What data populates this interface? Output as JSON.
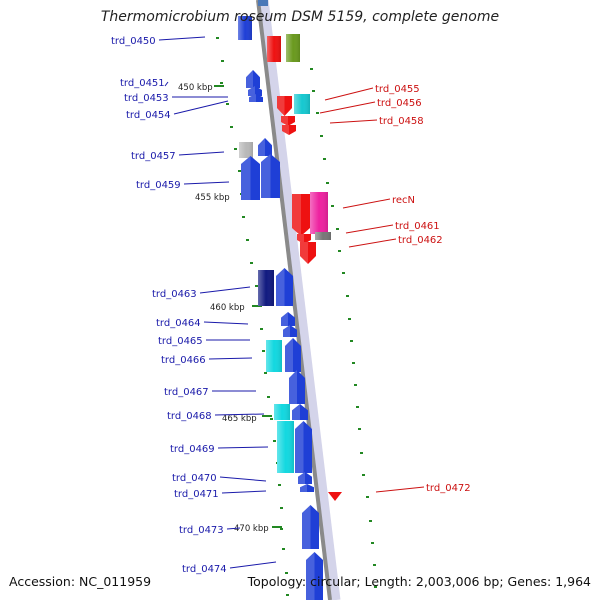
{
  "title": "Thermomicrobium roseum DSM 5159, complete genome",
  "accession_text": "Accession: NC_011959",
  "summary_text": "Topology: circular; Length: 2,003,006 bp; Genes: 1,964",
  "colors": {
    "backbone": "#8a8a8a",
    "left_label": "#1a1aaa",
    "right_label": "#cc1111",
    "tick": "#228822"
  },
  "scale_labels": [
    "450 kbp",
    "455 kbp",
    "460 kbp",
    "465 kbp",
    "470 kbp"
  ],
  "genes_left": [
    {
      "label": "trd_0450",
      "color": "#1f3fd6"
    },
    {
      "label": "trd_0451",
      "color": "#1f3fd6"
    },
    {
      "label": "trd_0453",
      "color": "#1f3fd6"
    },
    {
      "label": "trd_0454",
      "color": "#1f3fd6"
    },
    {
      "label": "trd_0457",
      "color": "#b8b8b8"
    },
    {
      "label": "trd_0459",
      "color": "#1f3fd6"
    },
    {
      "label": "trd_0463",
      "color": "#111a80"
    },
    {
      "label": "trd_0464",
      "color": "#1f3fd6"
    },
    {
      "label": "trd_0465",
      "color": "#1f3fd6"
    },
    {
      "label": "trd_0466",
      "color": "#12d8e0"
    },
    {
      "label": "trd_0467",
      "color": "#1f3fd6"
    },
    {
      "label": "trd_0468",
      "color": "#12d8e0"
    },
    {
      "label": "trd_0469",
      "color": "#1f3fd6"
    },
    {
      "label": "trd_0470",
      "color": "#1f3fd6"
    },
    {
      "label": "trd_0471",
      "color": "#1f3fd6"
    },
    {
      "label": "trd_0473",
      "color": "#1f3fd6"
    },
    {
      "label": "trd_0474",
      "color": "#1f3fd6"
    }
  ],
  "genes_right": [
    {
      "label": "trd_0455",
      "color": "#ee1111"
    },
    {
      "label": "trd_0456",
      "color": "#16c8d0"
    },
    {
      "label": "trd_0458",
      "color": "#ee1111"
    },
    {
      "label": "recN",
      "color": "#ee22a0"
    },
    {
      "label": "trd_0461",
      "color": "#777777"
    },
    {
      "label": "trd_0462",
      "color": "#ee1111"
    },
    {
      "label": "trd_0472",
      "color": "#ee1111"
    }
  ],
  "top_genes": [
    {
      "color": "#ee1111"
    },
    {
      "color": "#6a9a1e"
    }
  ]
}
